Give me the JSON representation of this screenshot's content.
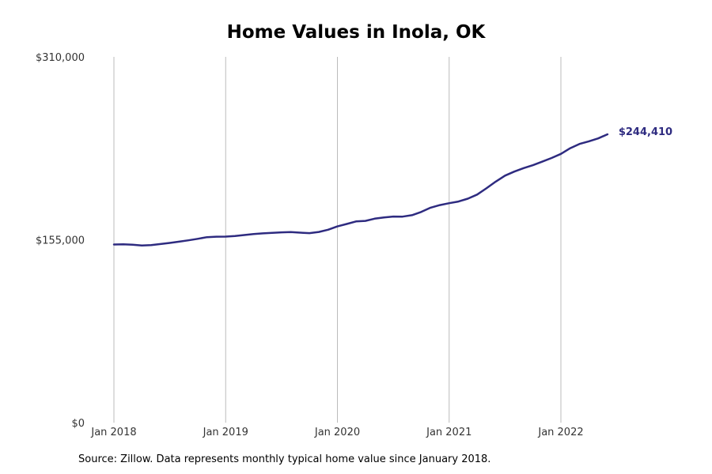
{
  "chart_data": {
    "type": "line",
    "title": "Home Values in Inola, OK",
    "xlabel": "",
    "ylabel": "",
    "ylim": [
      0,
      310000
    ],
    "y_ticks": [
      {
        "value": 0,
        "label": "$0"
      },
      {
        "value": 155000,
        "label": "$155,000"
      },
      {
        "value": 310000,
        "label": "$310,000"
      }
    ],
    "x_ticks": [
      {
        "value": "2018-01",
        "label": "Jan 2018"
      },
      {
        "value": "2019-01",
        "label": "Jan 2019"
      },
      {
        "value": "2020-01",
        "label": "Jan 2020"
      },
      {
        "value": "2021-01",
        "label": "Jan 2021"
      },
      {
        "value": "2022-01",
        "label": "Jan 2022"
      }
    ],
    "xlim": [
      "2018-01",
      "2022-10"
    ],
    "grid": {
      "x": true,
      "y": false
    },
    "end_label": "$244,410",
    "series": [
      {
        "color": "#2e2b80",
        "points": [
          [
            "2018-01",
            151000
          ],
          [
            "2018-02",
            151100
          ],
          [
            "2018-03",
            150800
          ],
          [
            "2018-04",
            150200
          ],
          [
            "2018-05",
            150500
          ],
          [
            "2018-06",
            151400
          ],
          [
            "2018-07",
            152300
          ],
          [
            "2018-08",
            153400
          ],
          [
            "2018-09",
            154500
          ],
          [
            "2018-10",
            155800
          ],
          [
            "2018-11",
            157200
          ],
          [
            "2018-12",
            157600
          ],
          [
            "2019-01",
            157700
          ],
          [
            "2019-02",
            158200
          ],
          [
            "2019-03",
            159000
          ],
          [
            "2019-04",
            159800
          ],
          [
            "2019-05",
            160400
          ],
          [
            "2019-06",
            160800
          ],
          [
            "2019-07",
            161300
          ],
          [
            "2019-08",
            161500
          ],
          [
            "2019-09",
            161000
          ],
          [
            "2019-10",
            160600
          ],
          [
            "2019-11",
            161600
          ],
          [
            "2019-12",
            163500
          ],
          [
            "2020-01",
            166300
          ],
          [
            "2020-02",
            168400
          ],
          [
            "2020-03",
            170500
          ],
          [
            "2020-04",
            171000
          ],
          [
            "2020-05",
            172900
          ],
          [
            "2020-06",
            173900
          ],
          [
            "2020-07",
            174700
          ],
          [
            "2020-08",
            174600
          ],
          [
            "2020-09",
            175800
          ],
          [
            "2020-10",
            178600
          ],
          [
            "2020-11",
            182200
          ],
          [
            "2020-12",
            184400
          ],
          [
            "2021-01",
            186000
          ],
          [
            "2021-02",
            187400
          ],
          [
            "2021-03",
            189800
          ],
          [
            "2021-04",
            193300
          ],
          [
            "2021-05",
            198600
          ],
          [
            "2021-06",
            204300
          ],
          [
            "2021-07",
            209400
          ],
          [
            "2021-08",
            212800
          ],
          [
            "2021-09",
            215700
          ],
          [
            "2021-10",
            218200
          ],
          [
            "2021-11",
            221200
          ],
          [
            "2021-12",
            224300
          ],
          [
            "2022-01",
            227800
          ],
          [
            "2022-02",
            232600
          ],
          [
            "2022-03",
            236200
          ],
          [
            "2022-04",
            238400
          ],
          [
            "2022-05",
            240900
          ],
          [
            "2022-06",
            244410
          ]
        ]
      }
    ]
  },
  "footer": {
    "source": "Source: Zillow. Data represents monthly typical home value since January 2018."
  }
}
